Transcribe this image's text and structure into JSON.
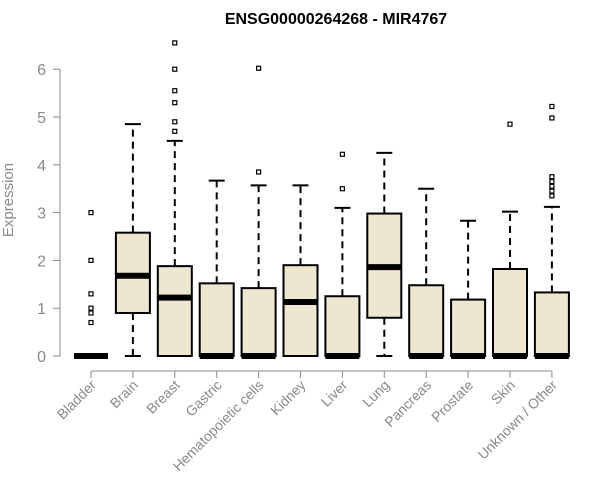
{
  "chart_data": {
    "type": "boxplot",
    "title": "ENSG00000264268 - MIR4767",
    "xlabel": "",
    "ylabel": "Expression",
    "ylim": [
      0,
      6.6
    ],
    "yticks": [
      "0",
      "1",
      "2",
      "3",
      "4",
      "5",
      "6"
    ],
    "grid": false,
    "colors": {
      "box_fill": "#ede7d1",
      "stroke": "#000000",
      "axis_text": "#8a8a8a"
    },
    "categories": [
      "Bladder",
      "Brain",
      "Breast",
      "Gastric",
      "Hematopoietic cells",
      "Kidney",
      "Liver",
      "Lung",
      "Pancreas",
      "Prostate",
      "Skin",
      "Unknown / Other"
    ],
    "series": [
      {
        "category": "Bladder",
        "q1": 0,
        "median": 0,
        "q3": 0,
        "whisker_low": 0,
        "whisker_high": 0,
        "outliers": [
          0.7,
          0.9,
          1.0,
          1.3,
          2.0,
          3.0
        ]
      },
      {
        "category": "Brain",
        "q1": 0.9,
        "median": 1.68,
        "q3": 2.58,
        "whisker_low": 0,
        "whisker_high": 4.85,
        "outliers": []
      },
      {
        "category": "Breast",
        "q1": 0,
        "median": 1.22,
        "q3": 1.88,
        "whisker_low": 0,
        "whisker_high": 4.5,
        "outliers": [
          4.7,
          4.9,
          5.3,
          5.55,
          6.0,
          6.55
        ]
      },
      {
        "category": "Gastric",
        "q1": 0,
        "median": 0,
        "q3": 1.52,
        "whisker_low": 0,
        "whisker_high": 3.67,
        "outliers": []
      },
      {
        "category": "Hematopoietic cells",
        "q1": 0,
        "median": 0,
        "q3": 1.42,
        "whisker_low": 0,
        "whisker_high": 3.57,
        "outliers": [
          3.85,
          6.02
        ]
      },
      {
        "category": "Kidney",
        "q1": 0,
        "median": 1.13,
        "q3": 1.9,
        "whisker_low": 0,
        "whisker_high": 3.57,
        "outliers": []
      },
      {
        "category": "Liver",
        "q1": 0,
        "median": 0,
        "q3": 1.25,
        "whisker_low": 0,
        "whisker_high": 3.1,
        "outliers": [
          3.5,
          4.22
        ]
      },
      {
        "category": "Lung",
        "q1": 0.8,
        "median": 1.86,
        "q3": 2.98,
        "whisker_low": 0,
        "whisker_high": 4.25,
        "outliers": []
      },
      {
        "category": "Pancreas",
        "q1": 0,
        "median": 0,
        "q3": 1.48,
        "whisker_low": 0,
        "whisker_high": 3.5,
        "outliers": []
      },
      {
        "category": "Prostate",
        "q1": 0,
        "median": 0,
        "q3": 1.18,
        "whisker_low": 0,
        "whisker_high": 2.83,
        "outliers": []
      },
      {
        "category": "Skin",
        "q1": 0,
        "median": 0,
        "q3": 1.82,
        "whisker_low": 0,
        "whisker_high": 3.02,
        "outliers": [
          4.85
        ]
      },
      {
        "category": "Unknown / Other",
        "q1": 0,
        "median": 0,
        "q3": 1.33,
        "whisker_low": 0,
        "whisker_high": 3.12,
        "outliers": [
          3.35,
          3.45,
          3.55,
          3.65,
          3.75,
          4.98,
          5.22
        ]
      }
    ]
  }
}
